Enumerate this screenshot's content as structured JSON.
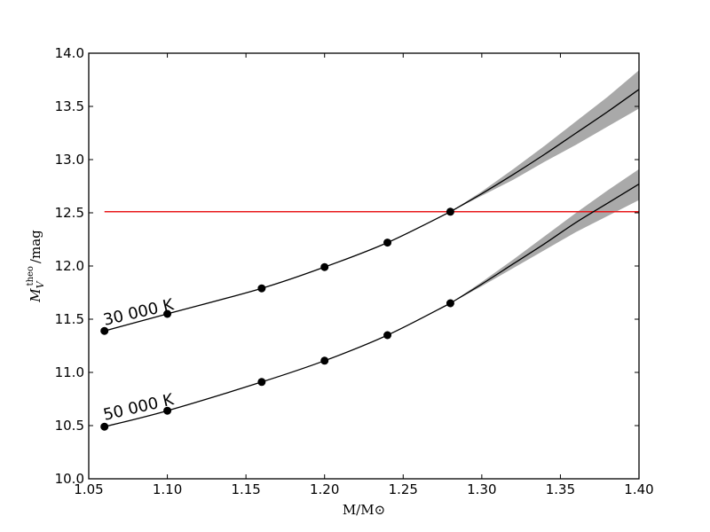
{
  "chart_data": {
    "type": "line",
    "xlabel": "M/M⊙",
    "ylabel_main": "M",
    "ylabel_sub": "V",
    "ylabel_sup": "theo",
    "ylabel_unit": "/mag",
    "xlim": [
      1.05,
      1.4
    ],
    "ylim": [
      10.0,
      14.0
    ],
    "x_ticks": [
      1.05,
      1.1,
      1.15,
      1.2,
      1.25,
      1.3,
      1.35,
      1.4
    ],
    "x_tick_labels": [
      "1.05",
      "1.10",
      "1.15",
      "1.20",
      "1.25",
      "1.30",
      "1.35",
      "1.40"
    ],
    "y_ticks": [
      10.0,
      10.5,
      11.0,
      11.5,
      12.0,
      12.5,
      13.0,
      13.5,
      14.0
    ],
    "y_tick_labels": [
      "10.0",
      "10.5",
      "11.0",
      "11.5",
      "12.0",
      "12.5",
      "13.0",
      "13.5",
      "14.0"
    ],
    "grid": false,
    "reference_line": {
      "y": 12.51,
      "x_start": 1.06,
      "x_end": 1.4,
      "color": "#e8181a"
    },
    "series": [
      {
        "name": "30 000 K",
        "color": "#000000",
        "band_color": "#a9a9a9",
        "points_x": [
          1.06,
          1.1,
          1.16,
          1.2,
          1.24,
          1.28
        ],
        "points_y": [
          11.39,
          11.55,
          11.79,
          11.99,
          12.22,
          12.51
        ],
        "extrap_x": [
          1.28,
          1.3,
          1.32,
          1.34,
          1.36,
          1.38,
          1.4
        ],
        "extrap_y": [
          12.51,
          12.68,
          12.86,
          13.05,
          13.25,
          13.45,
          13.66
        ],
        "band_upper": [
          12.51,
          12.7,
          12.91,
          13.13,
          13.36,
          13.59,
          13.84
        ],
        "band_lower": [
          12.51,
          12.66,
          12.81,
          12.98,
          13.14,
          13.31,
          13.48
        ]
      },
      {
        "name": "50 000 K",
        "color": "#000000",
        "band_color": "#a9a9a9",
        "points_x": [
          1.06,
          1.1,
          1.16,
          1.2,
          1.24,
          1.28
        ],
        "points_y": [
          10.49,
          10.64,
          10.91,
          11.11,
          11.35,
          11.65
        ],
        "extrap_x": [
          1.28,
          1.3,
          1.32,
          1.34,
          1.36,
          1.38,
          1.4
        ],
        "extrap_y": [
          11.65,
          11.83,
          12.02,
          12.21,
          12.41,
          12.59,
          12.77
        ],
        "band_upper": [
          11.65,
          11.85,
          12.06,
          12.28,
          12.5,
          12.71,
          12.91
        ],
        "band_lower": [
          11.65,
          11.81,
          11.98,
          12.15,
          12.32,
          12.47,
          12.62
        ]
      }
    ]
  }
}
